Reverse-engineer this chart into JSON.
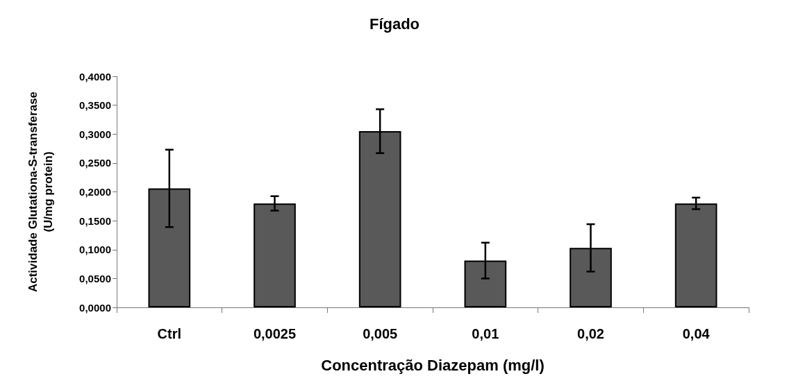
{
  "chart_data": {
    "type": "bar",
    "title": "Fígado",
    "xlabel": "Concentração Diazepam (mg/l)",
    "ylabel": "Actividade Glutationa-S-transferase\n(U/mg protein)",
    "categories": [
      "Ctrl",
      "0,0025",
      "0,005",
      "0,01",
      "0,02",
      "0,04"
    ],
    "values": [
      0.206,
      0.18,
      0.305,
      0.081,
      0.103,
      0.18
    ],
    "errors": [
      0.067,
      0.0125,
      0.038,
      0.031,
      0.041,
      0.01
    ],
    "color": "#595959",
    "ylim": [
      0,
      0.4
    ],
    "yticks": [
      {
        "value": 0,
        "label": "0,0000"
      },
      {
        "value": 0.05,
        "label": "0,0500"
      },
      {
        "value": 0.1,
        "label": "0,1000"
      },
      {
        "value": 0.15,
        "label": "0,1500"
      },
      {
        "value": 0.2,
        "label": "0,2000"
      },
      {
        "value": 0.25,
        "label": "0,2500"
      },
      {
        "value": 0.3,
        "label": "0,3000"
      },
      {
        "value": 0.35,
        "label": "0,3500"
      },
      {
        "value": 0.4,
        "label": "0,4000"
      }
    ],
    "grid": false
  }
}
